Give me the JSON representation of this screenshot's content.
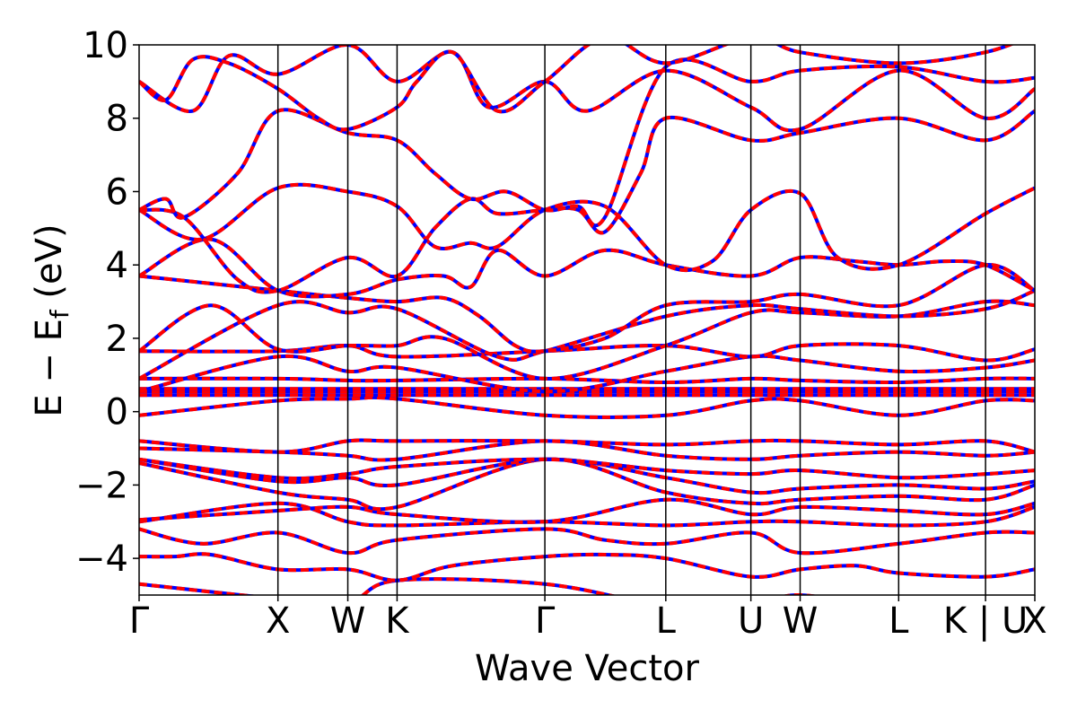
{
  "chart_data": {
    "type": "line",
    "title": "",
    "xlabel": "Wave Vector",
    "ylabel_main": "E − E",
    "ylabel_sub": "f",
    "ylabel_unit": " (eV)",
    "ylim": [
      -5,
      10
    ],
    "yticks": [
      -4,
      -2,
      0,
      2,
      4,
      6,
      8,
      10
    ],
    "ytick_labels": [
      "−4",
      "−2",
      "0",
      "2",
      "4",
      "6",
      "8",
      "10"
    ],
    "grid": false,
    "legend": "none",
    "kpath": [
      {
        "label": "Γ",
        "k": 0.0
      },
      {
        "label": "X",
        "k": 0.155
      },
      {
        "label": "W",
        "k": 0.233
      },
      {
        "label": "K",
        "k": 0.288
      },
      {
        "label": "Γ",
        "k": 0.453
      },
      {
        "label": "L",
        "k": 0.588
      },
      {
        "label": "U",
        "k": 0.683
      },
      {
        "label": "W",
        "k": 0.738
      },
      {
        "label": "L",
        "k": 0.848
      },
      {
        "label": "K | U",
        "k": 0.945
      },
      {
        "label": "X",
        "k": 1.0
      }
    ],
    "xlim": [
      0,
      1
    ],
    "colors": {
      "band_solid": "#ff0000",
      "band_dash": "#0000ff",
      "kline": "#000000"
    },
    "series": [
      {
        "x": [
          0,
          0.155,
          0.233,
          0.288,
          0.453,
          0.588,
          0.683,
          0.738,
          0.848,
          0.945,
          1.0
        ],
        "values": [
          -4.7,
          -5.1,
          -5.2,
          -4.6,
          -4.7,
          -5.3,
          -5.3,
          -5.0,
          -5.4,
          -5.3,
          -5.3
        ]
      },
      {
        "x": [
          0,
          0.04,
          0.08,
          0.155,
          0.233,
          0.288,
          0.35,
          0.453,
          0.52,
          0.588,
          0.683,
          0.738,
          0.8,
          0.848,
          0.945,
          1.0
        ],
        "values": [
          -3.95,
          -3.95,
          -3.9,
          -4.3,
          -4.3,
          -4.6,
          -4.2,
          -3.95,
          -3.9,
          -4.0,
          -4.5,
          -4.3,
          -4.2,
          -4.4,
          -4.5,
          -4.3
        ]
      },
      {
        "x": [
          0,
          0.07,
          0.155,
          0.233,
          0.288,
          0.453,
          0.52,
          0.588,
          0.683,
          0.738,
          0.848,
          0.945,
          1.0
        ],
        "values": [
          -3.2,
          -3.6,
          -3.3,
          -3.85,
          -3.5,
          -3.2,
          -3.5,
          -3.6,
          -3.3,
          -3.85,
          -3.6,
          -3.3,
          -3.3
        ]
      },
      {
        "x": [
          0,
          0.155,
          0.233,
          0.288,
          0.453,
          0.588,
          0.683,
          0.738,
          0.848,
          0.945,
          1.0
        ],
        "values": [
          -3.0,
          -2.5,
          -3.0,
          -3.1,
          -3.0,
          -3.1,
          -3.0,
          -3.0,
          -3.1,
          -3.0,
          -2.6
        ]
      },
      {
        "x": [
          0,
          0.155,
          0.233,
          0.288,
          0.453,
          0.588,
          0.683,
          0.738,
          0.848,
          0.945,
          1.0
        ],
        "values": [
          -2.95,
          -2.7,
          -2.6,
          -2.8,
          -3.0,
          -2.4,
          -2.8,
          -2.6,
          -2.7,
          -2.8,
          -2.5
        ]
      },
      {
        "x": [
          0,
          0.155,
          0.233,
          0.288,
          0.453,
          0.588,
          0.683,
          0.738,
          0.848,
          0.945,
          1.0
        ],
        "values": [
          -1.4,
          -2.2,
          -2.4,
          -2.6,
          -1.3,
          -2.2,
          -2.5,
          -2.4,
          -2.3,
          -2.4,
          -2.0
        ]
      },
      {
        "x": [
          0,
          0.155,
          0.233,
          0.288,
          0.453,
          0.588,
          0.683,
          0.738,
          0.848,
          0.945,
          1.0
        ],
        "values": [
          -1.3,
          -1.9,
          -1.8,
          -2.0,
          -1.3,
          -1.8,
          -2.2,
          -2.1,
          -2.0,
          -2.1,
          -1.9
        ]
      },
      {
        "x": [
          0,
          0.155,
          0.233,
          0.288,
          0.453,
          0.588,
          0.683,
          0.738,
          0.848,
          0.945,
          1.0
        ],
        "values": [
          -1.3,
          -1.8,
          -1.7,
          -1.5,
          -1.3,
          -1.6,
          -1.7,
          -1.6,
          -1.8,
          -1.7,
          -1.6
        ]
      },
      {
        "x": [
          0,
          0.155,
          0.233,
          0.288,
          0.453,
          0.588,
          0.683,
          0.738,
          0.848,
          0.945,
          1.0
        ],
        "values": [
          -1.0,
          -1.1,
          -1.2,
          -1.3,
          -0.8,
          -1.2,
          -1.3,
          -1.2,
          -1.1,
          -1.2,
          -1.1
        ]
      },
      {
        "x": [
          0,
          0.155,
          0.233,
          0.288,
          0.453,
          0.588,
          0.683,
          0.738,
          0.848,
          0.945,
          1.0
        ],
        "values": [
          -0.8,
          -1.1,
          -0.8,
          -0.8,
          -0.8,
          -0.9,
          -0.8,
          -0.8,
          -0.9,
          -0.8,
          -1.1
        ]
      },
      {
        "x": [
          0,
          0.155,
          0.233,
          0.288,
          0.453,
          0.588,
          0.683,
          0.738,
          0.848,
          0.945,
          1.0
        ],
        "values": [
          -0.1,
          0.3,
          0.35,
          0.35,
          -0.1,
          -0.1,
          0.3,
          0.3,
          -0.1,
          0.3,
          0.3
        ]
      },
      {
        "x": [
          0,
          0.155,
          0.233,
          0.288,
          0.453,
          0.588,
          0.683,
          0.738,
          0.848,
          0.945,
          1.0
        ],
        "values": [
          0.45,
          0.45,
          0.45,
          0.45,
          0.45,
          0.45,
          0.45,
          0.45,
          0.45,
          0.45,
          0.45
        ]
      },
      {
        "x": [
          0,
          0.155,
          0.233,
          0.288,
          0.453,
          0.588,
          0.683,
          0.738,
          0.848,
          0.945,
          1.0
        ],
        "values": [
          0.55,
          0.55,
          0.55,
          0.55,
          0.55,
          0.55,
          0.55,
          0.55,
          0.55,
          0.55,
          0.55
        ]
      },
      {
        "x": [
          0,
          0.155,
          0.233,
          0.288,
          0.453,
          0.588,
          0.683,
          0.738,
          0.848,
          0.945,
          1.0
        ],
        "values": [
          0.62,
          0.62,
          0.62,
          0.62,
          0.62,
          0.62,
          0.62,
          0.62,
          0.62,
          0.62,
          0.62
        ]
      },
      {
        "x": [
          0,
          0.155,
          0.233,
          0.288,
          0.453,
          0.588,
          0.683,
          0.738,
          0.848,
          0.945,
          1.0
        ],
        "values": [
          0.9,
          0.9,
          0.85,
          0.85,
          0.9,
          0.8,
          0.9,
          0.85,
          0.8,
          0.9,
          0.9
        ]
      },
      {
        "x": [
          0,
          0.155,
          0.233,
          0.288,
          0.453,
          0.588,
          0.683,
          0.738,
          0.848,
          0.945,
          1.0
        ],
        "values": [
          0.55,
          1.5,
          1.1,
          1.2,
          0.55,
          1.1,
          1.5,
          1.4,
          1.1,
          1.2,
          1.4
        ]
      },
      {
        "x": [
          0,
          0.155,
          0.233,
          0.288,
          0.453,
          0.588,
          0.683,
          0.738,
          0.848,
          0.945,
          1.0
        ],
        "values": [
          1.65,
          1.65,
          1.8,
          1.5,
          1.65,
          1.8,
          1.5,
          1.8,
          1.8,
          1.4,
          1.7
        ]
      },
      {
        "x": [
          0,
          0.08,
          0.155,
          0.233,
          0.288,
          0.34,
          0.453,
          0.588,
          0.683,
          0.738,
          0.848,
          0.945,
          1.0
        ],
        "values": [
          1.65,
          2.9,
          1.7,
          1.8,
          1.8,
          2.0,
          0.9,
          1.8,
          2.7,
          2.7,
          2.6,
          3.0,
          2.9
        ]
      },
      {
        "x": [
          0,
          0.155,
          0.233,
          0.288,
          0.4,
          0.453,
          0.588,
          0.683,
          0.738,
          0.848,
          0.945,
          1.0
        ],
        "values": [
          0.9,
          2.9,
          2.7,
          2.8,
          1.5,
          1.65,
          2.6,
          2.9,
          2.8,
          2.6,
          2.8,
          3.3
        ]
      },
      {
        "x": [
          0,
          0.155,
          0.233,
          0.288,
          0.34,
          0.38,
          0.42,
          0.453,
          0.52,
          0.588,
          0.683,
          0.738,
          0.848,
          0.945,
          1.0
        ],
        "values": [
          3.7,
          3.3,
          3.1,
          3.0,
          3.1,
          2.6,
          1.8,
          1.65,
          2.0,
          2.9,
          3.0,
          3.2,
          2.9,
          4.0,
          3.3
        ]
      },
      {
        "x": [
          0,
          0.08,
          0.155,
          0.233,
          0.288,
          0.34,
          0.37,
          0.4,
          0.453,
          0.52,
          0.588,
          0.683,
          0.738,
          0.8,
          0.848,
          0.9,
          0.945,
          1.0
        ],
        "values": [
          3.7,
          4.7,
          3.3,
          3.2,
          3.6,
          3.7,
          3.4,
          4.4,
          3.7,
          4.4,
          4.0,
          3.7,
          4.2,
          4.1,
          4.0,
          4.1,
          4.0,
          3.3
        ]
      },
      {
        "x": [
          0,
          0.07,
          0.155,
          0.233,
          0.288,
          0.33,
          0.37,
          0.4,
          0.453,
          0.52,
          0.588,
          0.64,
          0.683,
          0.738,
          0.78,
          0.848,
          0.945,
          1.0
        ],
        "values": [
          5.5,
          4.7,
          6.1,
          6.0,
          5.6,
          4.5,
          4.6,
          4.5,
          5.5,
          5.6,
          4.0,
          4.1,
          5.5,
          5.95,
          4.2,
          4.0,
          5.4,
          6.1
        ]
      },
      {
        "x": [
          0,
          0.05,
          0.11,
          0.155,
          0.233,
          0.288,
          0.33,
          0.37,
          0.4,
          0.453,
          0.49,
          0.52,
          0.56,
          0.588,
          0.683,
          0.738,
          0.848,
          0.945,
          1.0
        ],
        "values": [
          5.5,
          5.3,
          3.6,
          3.3,
          4.2,
          3.7,
          5.0,
          5.8,
          5.4,
          5.5,
          5.5,
          4.9,
          6.5,
          8.0,
          7.4,
          7.6,
          8.0,
          7.4,
          8.2
        ]
      },
      {
        "x": [
          0,
          0.03,
          0.05,
          0.11,
          0.155,
          0.233,
          0.288,
          0.33,
          0.37,
          0.41,
          0.453,
          0.49,
          0.52,
          0.588,
          0.683,
          0.738,
          0.848,
          0.945,
          1.0
        ],
        "values": [
          5.5,
          5.8,
          5.3,
          6.5,
          8.2,
          7.6,
          7.4,
          6.5,
          5.8,
          6.0,
          5.5,
          5.6,
          5.3,
          9.4,
          9.0,
          9.3,
          9.4,
          9.0,
          9.1
        ]
      },
      {
        "x": [
          0,
          0.06,
          0.1,
          0.155,
          0.233,
          0.288,
          0.35,
          0.39,
          0.453,
          0.5,
          0.588,
          0.683,
          0.738,
          0.848,
          0.945,
          1.0
        ],
        "values": [
          9.0,
          8.2,
          9.7,
          9.2,
          10.0,
          9.0,
          9.8,
          8.3,
          9.0,
          8.2,
          9.3,
          8.3,
          7.7,
          9.3,
          8.0,
          8.8
        ]
      },
      {
        "x": [
          0,
          0.03,
          0.06,
          0.1,
          0.155,
          0.2,
          0.233,
          0.288,
          0.31,
          0.35,
          0.4,
          0.453,
          0.52,
          0.588,
          0.683,
          0.738,
          0.848,
          0.945,
          1.0
        ],
        "values": [
          9.0,
          8.5,
          9.6,
          9.5,
          8.8,
          8.0,
          7.7,
          8.3,
          9.0,
          9.8,
          8.2,
          9.0,
          10.2,
          9.5,
          10.2,
          9.8,
          9.5,
          9.8,
          10.3
        ]
      }
    ]
  }
}
